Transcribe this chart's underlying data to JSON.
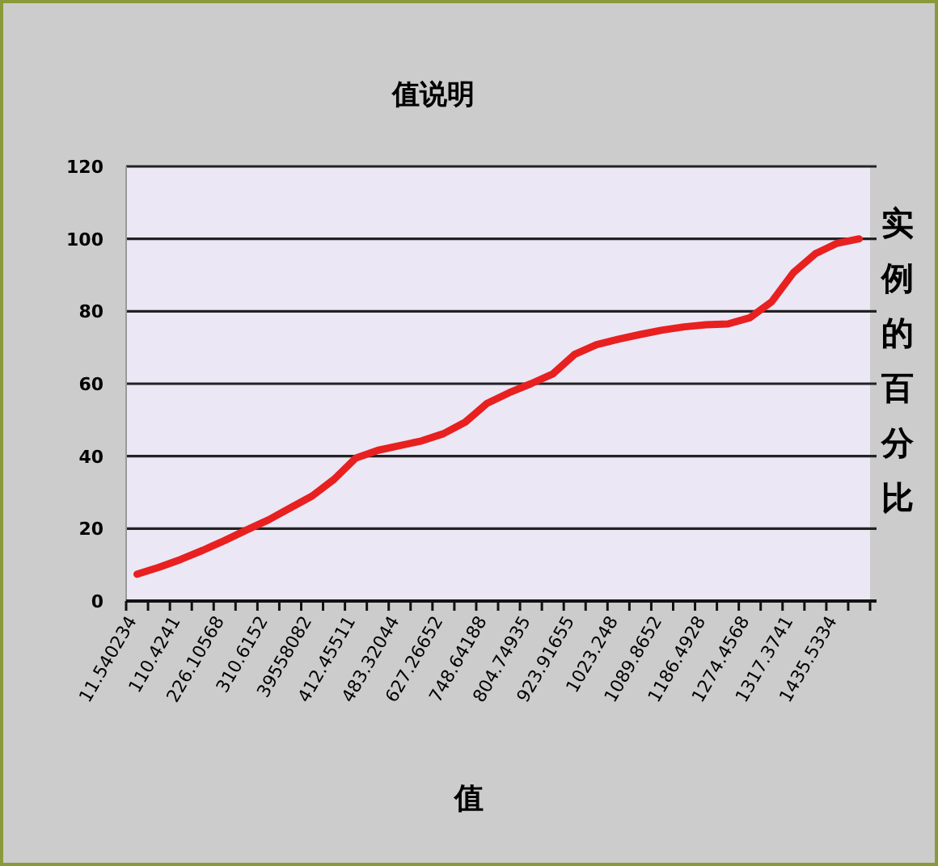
{
  "chart_data": {
    "type": "line",
    "title": "值说明",
    "xlabel": "值",
    "ylabel": "实例的百分比",
    "categories": [
      "11.540234",
      null,
      "110.4241",
      null,
      "226.10568",
      null,
      "310.6152",
      null,
      "39558082",
      null,
      "412.45511",
      null,
      "483.32044",
      null,
      "627.26652",
      null,
      "748.64188",
      null,
      "804.74935",
      null,
      "923.91655",
      null,
      "1023.248",
      null,
      "1089.8652",
      null,
      "1186.4928",
      null,
      "1274.4568",
      null,
      "1317.3741",
      null,
      "1435.5334",
      null
    ],
    "values": [
      7.4,
      9.3,
      11.5,
      14,
      16.7,
      19.6,
      22.4,
      25.7,
      29,
      33.6,
      39.5,
      41.6,
      42.9,
      44.2,
      46.2,
      49.4,
      54.6,
      57.5,
      60,
      62.7,
      68.1,
      70.8,
      72.3,
      73.6,
      74.8,
      75.7,
      76.3,
      76.5,
      78.2,
      82.6,
      90.7,
      95.9,
      98.8,
      100
    ],
    "color": "#e82020",
    "ylim": [
      0,
      120
    ],
    "yticks": [
      0,
      20,
      40,
      60,
      80,
      100,
      120
    ],
    "grid": "y"
  }
}
